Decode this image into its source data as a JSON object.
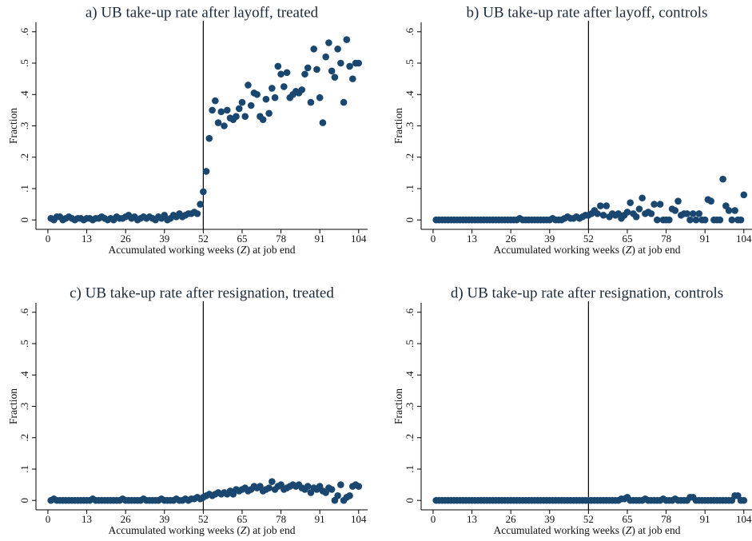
{
  "chart_data": [
    {
      "type": "scatter",
      "title": "a) UB take-up rate after layoff, treated",
      "xlabel": [
        "Accumulated working weeks (",
        "Z",
        ") at job end"
      ],
      "ylabel": "Fraction",
      "color": "#1a476f",
      "vline": 52,
      "xlim": [
        -4,
        107
      ],
      "ylim": [
        -0.03,
        0.63
      ],
      "xticks": [
        0,
        13,
        26,
        39,
        52,
        65,
        78,
        91,
        104
      ],
      "yticks": [
        0,
        {
          "value": 0.1,
          "label": ".1"
        },
        {
          "value": 0.2,
          "label": ".2"
        },
        {
          "value": 0.3,
          "label": ".3"
        },
        {
          "value": 0.4,
          "label": ".4"
        },
        {
          "value": 0.5,
          "label": ".5"
        },
        {
          "value": 0.6,
          "label": ".6"
        }
      ],
      "x": [
        1,
        2,
        3,
        4,
        5,
        6,
        7,
        8,
        9,
        10,
        11,
        12,
        13,
        14,
        15,
        16,
        17,
        18,
        19,
        20,
        21,
        22,
        23,
        24,
        25,
        26,
        27,
        28,
        29,
        30,
        31,
        32,
        33,
        34,
        35,
        36,
        37,
        38,
        39,
        40,
        41,
        42,
        43,
        44,
        45,
        46,
        47,
        48,
        49,
        50,
        51,
        52,
        53,
        54,
        55,
        56,
        57,
        58,
        59,
        60,
        61,
        62,
        63,
        64,
        65,
        66,
        67,
        68,
        69,
        70,
        71,
        72,
        73,
        74,
        75,
        76,
        77,
        78,
        79,
        80,
        81,
        82,
        83,
        84,
        85,
        86,
        87,
        88,
        89,
        90,
        91,
        92,
        93,
        94,
        95,
        96,
        97,
        98,
        99,
        100,
        101,
        102,
        103,
        104
      ],
      "values": [
        0.005,
        0.0,
        0.01,
        0.01,
        0.0,
        0.005,
        0.01,
        0.005,
        0.0,
        0.005,
        0.005,
        0.0,
        0.005,
        0.005,
        0.0,
        0.005,
        0.005,
        0.01,
        0.005,
        0.0,
        0.005,
        0.0,
        0.01,
        0.005,
        0.005,
        0.01,
        0.015,
        0.005,
        0.01,
        0.0,
        0.005,
        0.01,
        0.005,
        0.01,
        0.005,
        0.0,
        0.01,
        0.005,
        0.015,
        0.0,
        0.005,
        0.015,
        0.01,
        0.02,
        0.01,
        0.015,
        0.02,
        0.02,
        0.025,
        0.02,
        0.05,
        0.09,
        0.155,
        0.26,
        0.35,
        0.38,
        0.31,
        0.345,
        0.3,
        0.35,
        0.325,
        0.32,
        0.33,
        0.355,
        0.375,
        0.33,
        0.43,
        0.365,
        0.405,
        0.4,
        0.33,
        0.32,
        0.385,
        0.34,
        0.42,
        0.39,
        0.49,
        0.465,
        0.425,
        0.47,
        0.39,
        0.4,
        0.41,
        0.405,
        0.415,
        0.465,
        0.485,
        0.375,
        0.545,
        0.48,
        0.39,
        0.31,
        0.52,
        0.565,
        0.475,
        0.455,
        0.545,
        0.5,
        0.375,
        0.575,
        0.49,
        0.45,
        0.5,
        0.5
      ]
    },
    {
      "type": "scatter",
      "title": "b) UB take-up rate after layoff, controls",
      "xlabel": [
        "Accumulated working weeks (",
        "Z",
        ") at job end"
      ],
      "ylabel": "Fraction",
      "color": "#1a476f",
      "vline": 52,
      "xlim": [
        -4,
        107
      ],
      "ylim": [
        -0.03,
        0.63
      ],
      "xticks": [
        0,
        13,
        26,
        39,
        52,
        65,
        78,
        91,
        104
      ],
      "yticks": [
        0,
        {
          "value": 0.1,
          "label": ".1"
        },
        {
          "value": 0.2,
          "label": ".2"
        },
        {
          "value": 0.3,
          "label": ".3"
        },
        {
          "value": 0.4,
          "label": ".4"
        },
        {
          "value": 0.5,
          "label": ".5"
        },
        {
          "value": 0.6,
          "label": ".6"
        }
      ],
      "x": [
        1,
        2,
        3,
        4,
        5,
        6,
        7,
        8,
        9,
        10,
        11,
        12,
        13,
        14,
        15,
        16,
        17,
        18,
        19,
        20,
        21,
        22,
        23,
        24,
        25,
        26,
        27,
        28,
        29,
        30,
        31,
        32,
        33,
        34,
        35,
        36,
        37,
        38,
        39,
        40,
        41,
        42,
        43,
        44,
        45,
        46,
        47,
        48,
        49,
        50,
        51,
        52,
        53,
        54,
        55,
        56,
        57,
        58,
        59,
        60,
        61,
        62,
        63,
        64,
        65,
        66,
        67,
        68,
        69,
        70,
        71,
        72,
        73,
        74,
        75,
        76,
        77,
        78,
        79,
        80,
        81,
        82,
        83,
        84,
        85,
        86,
        87,
        88,
        89,
        90,
        91,
        92,
        93,
        94,
        95,
        96,
        97,
        98,
        99,
        100,
        101,
        102,
        103,
        104
      ],
      "values": [
        0.0,
        0.0,
        0.0,
        0.0,
        0.0,
        0.0,
        0.0,
        0.0,
        0.0,
        0.0,
        0.0,
        0.0,
        0.0,
        0.0,
        0.0,
        0.0,
        0.0,
        0.0,
        0.0,
        0.0,
        0.0,
        0.0,
        0.0,
        0.0,
        0.0,
        0.0,
        0.0,
        0.0,
        0.005,
        0.0,
        0.0,
        0.0,
        0.0,
        0.0,
        0.0,
        0.0,
        0.0,
        0.0,
        0.0,
        0.005,
        0.0,
        0.0,
        0.0,
        0.005,
        0.01,
        0.005,
        0.005,
        0.01,
        0.005,
        0.01,
        0.015,
        0.015,
        0.02,
        0.03,
        0.02,
        0.045,
        0.015,
        0.045,
        0.01,
        0.02,
        0.015,
        0.02,
        0.005,
        0.015,
        0.025,
        0.055,
        0.02,
        0.01,
        0.035,
        0.07,
        0.02,
        0.025,
        0.02,
        0.05,
        0.0,
        0.05,
        0.0,
        0.0,
        0.0,
        0.035,
        0.03,
        0.06,
        0.015,
        0.02,
        0.02,
        0.0,
        0.02,
        0.0,
        0.02,
        0.0,
        0.0,
        0.065,
        0.06,
        0.0,
        0.0,
        0.0,
        0.13,
        0.045,
        0.03,
        0.0,
        0.03,
        0.0,
        0.0,
        0.08
      ]
    },
    {
      "type": "scatter",
      "title": "c) UB take-up rate after resignation, treated",
      "xlabel": [
        "Accumulated working weeks (",
        "Z",
        ") at job end"
      ],
      "ylabel": "Fraction",
      "color": "#1a476f",
      "vline": 52,
      "xlim": [
        -4,
        107
      ],
      "ylim": [
        -0.03,
        0.63
      ],
      "xticks": [
        0,
        13,
        26,
        39,
        52,
        65,
        78,
        91,
        104
      ],
      "yticks": [
        0,
        {
          "value": 0.1,
          "label": ".1"
        },
        {
          "value": 0.2,
          "label": ".2"
        },
        {
          "value": 0.3,
          "label": ".3"
        },
        {
          "value": 0.4,
          "label": ".4"
        },
        {
          "value": 0.5,
          "label": ".5"
        },
        {
          "value": 0.6,
          "label": ".6"
        }
      ],
      "x": [
        1,
        2,
        3,
        4,
        5,
        6,
        7,
        8,
        9,
        10,
        11,
        12,
        13,
        14,
        15,
        16,
        17,
        18,
        19,
        20,
        21,
        22,
        23,
        24,
        25,
        26,
        27,
        28,
        29,
        30,
        31,
        32,
        33,
        34,
        35,
        36,
        37,
        38,
        39,
        40,
        41,
        42,
        43,
        44,
        45,
        46,
        47,
        48,
        49,
        50,
        51,
        52,
        53,
        54,
        55,
        56,
        57,
        58,
        59,
        60,
        61,
        62,
        63,
        64,
        65,
        66,
        67,
        68,
        69,
        70,
        71,
        72,
        73,
        74,
        75,
        76,
        77,
        78,
        79,
        80,
        81,
        82,
        83,
        84,
        85,
        86,
        87,
        88,
        89,
        90,
        91,
        92,
        93,
        94,
        95,
        96,
        97,
        98,
        99,
        100,
        101,
        102,
        103,
        104
      ],
      "values": [
        0.0,
        0.005,
        0.0,
        0.0,
        0.0,
        0.0,
        0.0,
        0.0,
        0.0,
        0.0,
        0.0,
        0.0,
        0.0,
        0.0,
        0.005,
        0.0,
        0.0,
        0.0,
        0.0,
        0.0,
        0.0,
        0.0,
        0.0,
        0.0,
        0.005,
        0.0,
        0.0,
        0.0,
        0.0,
        0.0,
        0.0,
        0.005,
        0.0,
        0.0,
        0.0,
        0.0,
        0.0,
        0.005,
        0.0,
        0.0,
        0.0,
        0.0,
        0.005,
        0.0,
        0.0,
        0.005,
        0.0,
        0.005,
        0.005,
        0.01,
        0.005,
        0.01,
        0.015,
        0.02,
        0.015,
        0.02,
        0.025,
        0.02,
        0.025,
        0.02,
        0.03,
        0.02,
        0.035,
        0.03,
        0.035,
        0.04,
        0.03,
        0.035,
        0.045,
        0.04,
        0.045,
        0.03,
        0.035,
        0.04,
        0.06,
        0.035,
        0.045,
        0.05,
        0.035,
        0.04,
        0.045,
        0.05,
        0.045,
        0.05,
        0.04,
        0.035,
        0.045,
        0.025,
        0.04,
        0.035,
        0.045,
        0.03,
        0.025,
        0.04,
        0.035,
        0.0,
        0.015,
        0.05,
        0.0,
        0.01,
        0.015,
        0.045,
        0.05,
        0.045
      ]
    },
    {
      "type": "scatter",
      "title": "d) UB take-up rate after resignation, controls",
      "xlabel": [
        "Accumulated working weeks (",
        "Z",
        ") at job end"
      ],
      "ylabel": "Fraction",
      "color": "#1a476f",
      "vline": 52,
      "xlim": [
        -4,
        107
      ],
      "ylim": [
        -0.03,
        0.63
      ],
      "xticks": [
        0,
        13,
        26,
        39,
        52,
        65,
        78,
        91,
        104
      ],
      "yticks": [
        0,
        {
          "value": 0.1,
          "label": ".1"
        },
        {
          "value": 0.2,
          "label": ".2"
        },
        {
          "value": 0.3,
          "label": ".3"
        },
        {
          "value": 0.4,
          "label": ".4"
        },
        {
          "value": 0.5,
          "label": ".5"
        },
        {
          "value": 0.6,
          "label": ".6"
        }
      ],
      "x": [
        1,
        2,
        3,
        4,
        5,
        6,
        7,
        8,
        9,
        10,
        11,
        12,
        13,
        14,
        15,
        16,
        17,
        18,
        19,
        20,
        21,
        22,
        23,
        24,
        25,
        26,
        27,
        28,
        29,
        30,
        31,
        32,
        33,
        34,
        35,
        36,
        37,
        38,
        39,
        40,
        41,
        42,
        43,
        44,
        45,
        46,
        47,
        48,
        49,
        50,
        51,
        52,
        53,
        54,
        55,
        56,
        57,
        58,
        59,
        60,
        61,
        62,
        63,
        64,
        65,
        66,
        67,
        68,
        69,
        70,
        71,
        72,
        73,
        74,
        75,
        76,
        77,
        78,
        79,
        80,
        81,
        82,
        83,
        84,
        85,
        86,
        87,
        88,
        89,
        90,
        91,
        92,
        93,
        94,
        95,
        96,
        97,
        98,
        99,
        100,
        101,
        102,
        103,
        104
      ],
      "values": [
        0.0,
        0.0,
        0.0,
        0.0,
        0.0,
        0.0,
        0.0,
        0.0,
        0.0,
        0.0,
        0.0,
        0.0,
        0.0,
        0.0,
        0.0,
        0.0,
        0.0,
        0.0,
        0.0,
        0.0,
        0.0,
        0.0,
        0.0,
        0.0,
        0.0,
        0.0,
        0.0,
        0.0,
        0.0,
        0.0,
        0.0,
        0.0,
        0.0,
        0.0,
        0.0,
        0.0,
        0.0,
        0.0,
        0.0,
        0.0,
        0.0,
        0.0,
        0.0,
        0.0,
        0.0,
        0.0,
        0.0,
        0.0,
        0.0,
        0.0,
        0.0,
        0.0,
        0.0,
        0.0,
        0.0,
        0.0,
        0.0,
        0.0,
        0.0,
        0.0,
        0.0,
        0.0,
        0.005,
        0.005,
        0.01,
        0.0,
        0.0,
        0.0,
        0.0,
        0.0,
        0.005,
        0.0,
        0.0,
        0.0,
        0.0,
        0.0,
        0.005,
        0.0,
        0.0,
        0.0,
        0.005,
        0.0,
        0.0,
        0.0,
        0.0,
        0.01,
        0.01,
        0.0,
        0.0,
        0.0,
        0.0,
        0.0,
        0.0,
        0.0,
        0.0,
        0.0,
        0.0,
        0.0,
        0.0,
        0.0,
        0.015,
        0.015,
        0.0,
        0.0
      ]
    }
  ]
}
